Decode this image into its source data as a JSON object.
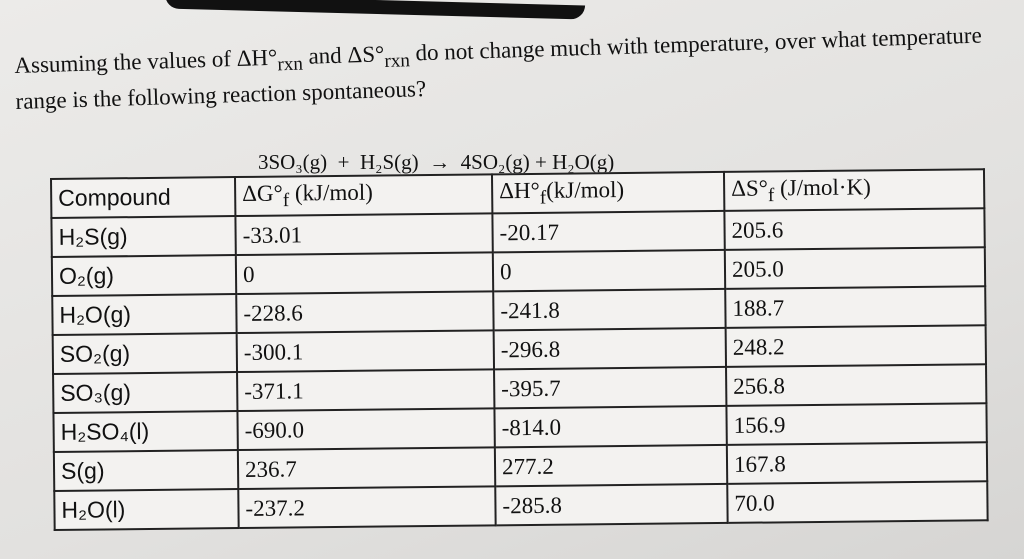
{
  "question": {
    "parts": [
      "Assuming the values of ΔH°",
      "rxn",
      " and ΔS°",
      "rxn",
      " do not change much with temperature, over what temperature range is the following reaction spontaneous?"
    ]
  },
  "reaction": "3SO₃(g)  +  H₂S(g)  →  4SO₂(g) + H₂O(g)",
  "table": {
    "headers": [
      {
        "main": "Compound"
      },
      {
        "main": "ΔG°",
        "sub": "f",
        "unit": " (kJ/mol)"
      },
      {
        "main": "ΔH°",
        "sub": "f",
        "unit": "(kJ/mol)"
      },
      {
        "main": "ΔS°",
        "sub": "f",
        "unit": " (J/mol·K)"
      }
    ],
    "rows": [
      [
        "H₂S(g)",
        "-33.01",
        "-20.17",
        "205.6"
      ],
      [
        "O₂(g)",
        "0",
        "0",
        "205.0"
      ],
      [
        "H₂O(g)",
        "-228.6",
        "-241.8",
        "188.7"
      ],
      [
        "SO₂(g)",
        "-300.1",
        "-296.8",
        "248.2"
      ],
      [
        "SO₃(g)",
        "-371.1",
        "-395.7",
        "256.8"
      ],
      [
        "H₂SO₄(l)",
        "-690.0",
        "-814.0",
        "156.9"
      ],
      [
        "S(g)",
        "236.7",
        "277.2",
        "167.8"
      ],
      [
        "H₂O(l)",
        "-237.2",
        "-285.8",
        "70.0"
      ]
    ]
  }
}
